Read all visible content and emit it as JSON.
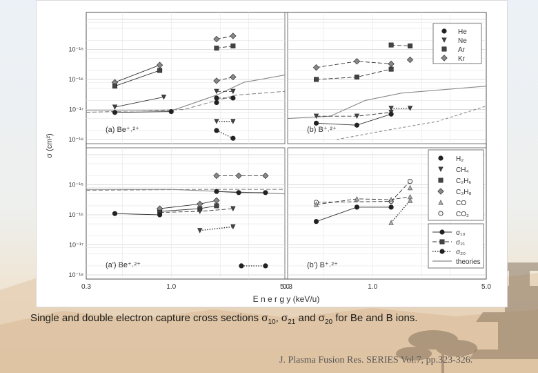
{
  "caption": {
    "text_before": "Single and double electron capture cross sections σ",
    "sub1": "10",
    "mid1": ", σ",
    "sub2": "21",
    "mid2": " and σ",
    "sub3": "20",
    "text_after": " for Be and B ions."
  },
  "citation": "J. Plasma Fusion Res. SERIES Vol.7, pp.323-326.",
  "chart_data": {
    "type": "scatter",
    "x_scale": "log",
    "y_scale": "log",
    "xlabel": "E n e r g y  (keV/u)",
    "ylabel": "σ (cm²)",
    "x_ticks_left": [
      "0.3",
      "1.0",
      "5.0"
    ],
    "x_ticks_right": [
      "0.3",
      "1.0",
      "5.0"
    ],
    "xlim": [
      0.3,
      5.0
    ],
    "ylim": [
      1e-18,
      1e-14
    ],
    "y_tick_labels": [
      "10⁻¹⁵",
      "10⁻¹⁶",
      "10⁻¹⁷",
      "10⁻¹⁸"
    ],
    "y_tick_values": [
      1e-15,
      1e-16,
      1e-17,
      1e-18
    ],
    "grid": true,
    "colors": {
      "line": "#333333",
      "theory": "#888888",
      "grid": "#cfcfcf"
    },
    "legend_targets": [
      "He",
      "Ne",
      "Ar",
      "Kr"
    ],
    "legend_molecules": [
      "H₂",
      "CH₄",
      "C₂H₆",
      "C₃H₈",
      "CO",
      "CO₂"
    ],
    "legend_sections": [
      "σ₁₀",
      "σ₂₁",
      "σ₂₀",
      "theories"
    ],
    "panels": [
      {
        "id": "a",
        "label": "(a) Be⁺˒²⁺",
        "series": [
          {
            "name": "Kr σ₂₁",
            "marker": "diamond",
            "style": "solid",
            "x": [
              0.45,
              0.85
            ],
            "y": [
              8e-17,
              3e-16
            ]
          },
          {
            "name": "Ar σ₂₁",
            "marker": "square",
            "style": "solid",
            "x": [
              0.45,
              0.85
            ],
            "y": [
              6e-17,
              2e-16
            ]
          },
          {
            "name": "Kr σ₂₁ high",
            "marker": "diamond",
            "style": "dashed",
            "x": [
              1.9,
              2.4
            ],
            "y": [
              2.2e-15,
              2.8e-15
            ]
          },
          {
            "name": "Ar σ₂₁ high",
            "marker": "square",
            "style": "dashed",
            "x": [
              1.9,
              2.4
            ],
            "y": [
              1.1e-15,
              1.3e-15
            ]
          },
          {
            "name": "Kr σ₁₀",
            "marker": "diamond",
            "style": "dashed",
            "x": [
              1.9,
              2.4
            ],
            "y": [
              9e-17,
              1.2e-16
            ]
          },
          {
            "name": "Ne σ₂₁",
            "marker": "tri_down",
            "style": "solid",
            "x": [
              0.45,
              0.9
            ],
            "y": [
              1.2e-17,
              2.6e-17
            ]
          },
          {
            "name": "Ne σ₂₁ b",
            "marker": "tri_down",
            "style": "dashed",
            "x": [
              1.9,
              2.4
            ],
            "y": [
              4e-17,
              4e-17
            ]
          },
          {
            "name": "He σ₁₀",
            "marker": "circle",
            "style": "solid",
            "x": [
              0.45,
              1.0
            ],
            "y": [
              8e-18,
              8.5e-18
            ]
          },
          {
            "name": "He σ₁₀ b",
            "marker": "circle",
            "style": "dashed",
            "x": [
              1.9,
              2.4
            ],
            "y": [
              2.4e-17,
              2.4e-17
            ]
          },
          {
            "name": "He σ₂₁",
            "marker": "circle",
            "style": "dashed",
            "x": [
              1.9
            ],
            "y": [
              1.7e-17
            ]
          },
          {
            "name": "Ne σ₂₀",
            "marker": "tri_down",
            "style": "dotted",
            "x": [
              1.9,
              2.4
            ],
            "y": [
              4e-18,
              4e-18
            ]
          },
          {
            "name": "He σ₂₀",
            "marker": "circle",
            "style": "dotted",
            "x": [
              1.9,
              2.4
            ],
            "y": [
              2e-18,
              1.1e-18
            ]
          }
        ]
      },
      {
        "id": "b",
        "label": "(b) B⁺˒²⁺",
        "series": [
          {
            "name": "Kr σ₂₁",
            "marker": "diamond",
            "style": "dashed",
            "x": [
              0.45,
              0.8,
              1.3
            ],
            "y": [
              2.5e-16,
              4e-16,
              3.3e-16
            ]
          },
          {
            "name": "Ar σ₂₁",
            "marker": "square",
            "style": "dashed",
            "x": [
              0.45,
              0.8,
              1.3
            ],
            "y": [
              1e-16,
              1.2e-16,
              2.2e-16
            ]
          },
          {
            "name": "Ar high",
            "marker": "square",
            "style": "dashed",
            "x": [
              1.3,
              1.7
            ],
            "y": [
              1.4e-15,
              1.3e-15
            ]
          },
          {
            "name": "Kr high",
            "marker": "diamond",
            "style": "dashed",
            "x": [
              1.7
            ],
            "y": [
              4.5e-16
            ]
          },
          {
            "name": "Ne σ₂₁",
            "marker": "tri_down",
            "style": "dashed",
            "x": [
              0.45,
              0.8,
              1.3
            ],
            "y": [
              6e-18,
              6e-18,
              8e-18
            ]
          },
          {
            "name": "He σ₁₀",
            "marker": "circle",
            "style": "solid",
            "x": [
              0.45,
              0.8,
              1.3
            ],
            "y": [
              3.5e-18,
              3e-18,
              7e-18
            ]
          },
          {
            "name": "Ne σ₂₀",
            "marker": "tri_down",
            "style": "dotted",
            "x": [
              1.3,
              1.7
            ],
            "y": [
              1.1e-17,
              1.1e-17
            ]
          }
        ]
      },
      {
        "id": "a_prime",
        "label": "(a') Be⁺˒²⁺",
        "series": [
          {
            "name": "C₃H₈ σ₂₁",
            "marker": "diamond",
            "style": "dashed",
            "x": [
              1.9,
              2.6,
              3.8
            ],
            "y": [
              2e-15,
              2e-15,
              2e-15
            ]
          },
          {
            "name": "C₂H₆ σ₁₀",
            "marker": "circle",
            "style": "solid",
            "x": [
              1.9,
              2.6,
              3.8
            ],
            "y": [
              6e-16,
              5.5e-16,
              5.5e-16
            ]
          },
          {
            "name": "C₂H₆ low",
            "marker": "square",
            "style": "solid",
            "x": [
              0.85,
              1.5,
              1.9
            ],
            "y": [
              1.3e-16,
              1.6e-16,
              2e-16
            ]
          },
          {
            "name": "C₃H₈ low",
            "marker": "diamond",
            "style": "solid",
            "x": [
              0.85,
              1.5,
              1.9
            ],
            "y": [
              1.6e-16,
              2.3e-16,
              3e-16
            ]
          },
          {
            "name": "CH₄ σ₂₁",
            "marker": "tri_down",
            "style": "dashed",
            "x": [
              0.85,
              1.5,
              2.4
            ],
            "y": [
              1.2e-16,
              1.3e-16,
              1.6e-16
            ]
          },
          {
            "name": "H₂ σ₁₀",
            "marker": "circle",
            "style": "solid",
            "x": [
              0.45,
              0.85
            ],
            "y": [
              1.1e-16,
              1e-16
            ]
          },
          {
            "name": "CH₄ σ₂₀",
            "marker": "tri_down",
            "style": "dotted",
            "x": [
              1.5,
              2.4
            ],
            "y": [
              3e-17,
              4e-17
            ]
          },
          {
            "name": "H₂ σ₂₀",
            "marker": "circle",
            "style": "dotted",
            "x": [
              2.7,
              3.8
            ],
            "y": [
              2e-18,
              2e-18
            ]
          }
        ]
      },
      {
        "id": "b_prime",
        "label": "(b') B⁺˒²⁺",
        "series": [
          {
            "name": "CO₂ σ₂₁",
            "marker": "circle_open",
            "style": "dashed",
            "x": [
              0.45,
              1.3,
              1.7
            ],
            "y": [
              2.6e-16,
              2.8e-16,
              1.3e-15
            ]
          },
          {
            "name": "CO σ₂₁",
            "marker": "tri_up",
            "style": "dashed",
            "x": [
              0.45,
              0.8,
              1.3,
              1.7
            ],
            "y": [
              2.2e-16,
              3.4e-16,
              3.2e-16,
              4e-16
            ]
          },
          {
            "name": "CO high",
            "marker": "tri_up",
            "style": "dashed",
            "x": [
              1.7
            ],
            "y": [
              8e-16
            ]
          },
          {
            "name": "H₂ σ₁₀",
            "marker": "circle",
            "style": "solid",
            "x": [
              0.45,
              0.8,
              1.3
            ],
            "y": [
              6e-17,
              1.8e-16,
              1.8e-16
            ]
          },
          {
            "name": "CO σ₂₀",
            "marker": "tri_up",
            "style": "dotted",
            "x": [
              1.3,
              1.7
            ],
            "y": [
              5.5e-17,
              3e-16
            ]
          }
        ]
      }
    ]
  }
}
